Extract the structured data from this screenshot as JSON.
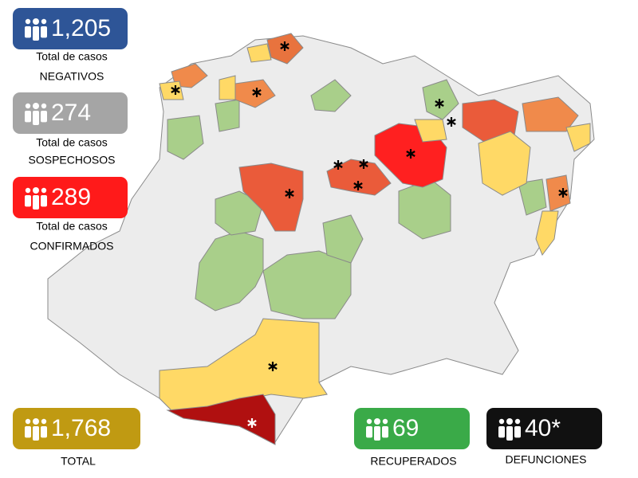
{
  "stats": [
    {
      "value": "1,205",
      "label_lines": [
        "Total de casos",
        "NEGATIVOS"
      ],
      "color": "#2e5597"
    },
    {
      "value": "274",
      "label_lines": [
        "Total de casos",
        "SOSPECHOSOS"
      ],
      "color": "#a5a5a5"
    },
    {
      "value": "289",
      "label_lines": [
        "Total de casos",
        "CONFIRMADOS"
      ],
      "color": "#ff1a1a"
    },
    {
      "value": "1,768",
      "label_lines": [
        "TOTAL"
      ],
      "color": "#c09a12"
    },
    {
      "value": "69",
      "label_lines": [
        "RECUPERADOS"
      ],
      "color": "#3aaa48"
    },
    {
      "value": "40*",
      "label_lines": [
        "DEFUNCIONES"
      ],
      "color": "#111111"
    }
  ]
}
